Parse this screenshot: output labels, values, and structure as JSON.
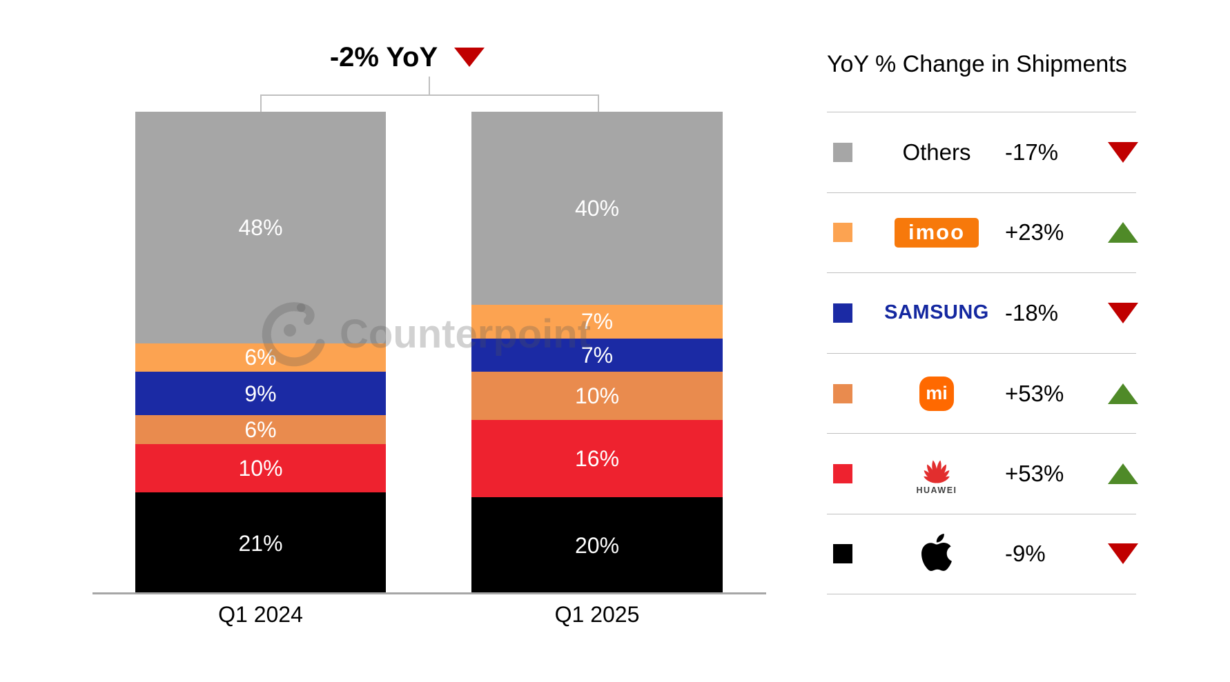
{
  "title": {
    "text": "-2% YoY",
    "direction": "down"
  },
  "watermark": {
    "text": "Counterpoint"
  },
  "colors": {
    "up": "#4F8A28",
    "down": "#C00000",
    "axis": "#A6A6A6",
    "divider": "#BFBFBF",
    "samsung_wordmark": "#1428A0",
    "imoo_logo_bg": "#F7790B",
    "mi_logo_bg": "#FF6900",
    "huawei_logo_red": "#E22E2E"
  },
  "chart_data": {
    "type": "bar",
    "subtype": "stacked-100-percent",
    "title": "-2% YoY",
    "unit": "%",
    "ylim": [
      0,
      100
    ],
    "grid": false,
    "legend_position": "right",
    "categories": [
      "Q1 2024",
      "Q1 2025"
    ],
    "series": [
      {
        "name": "Others",
        "color": "#A6A6A6",
        "values": [
          48,
          40
        ]
      },
      {
        "name": "imoo",
        "color": "#FCA351",
        "values": [
          6,
          7
        ]
      },
      {
        "name": "Samsung",
        "color": "#1B2AA4",
        "values": [
          9,
          7
        ]
      },
      {
        "name": "Xiaomi",
        "color": "#E98B4E",
        "values": [
          6,
          10
        ]
      },
      {
        "name": "Huawei",
        "color": "#EE222F",
        "values": [
          10,
          16
        ]
      },
      {
        "name": "Apple",
        "color": "#000000",
        "values": [
          21,
          20
        ]
      }
    ]
  },
  "legend": {
    "header": "YoY % Change in Shipments",
    "rows": [
      {
        "brand": "Others",
        "logo": "text",
        "swatch": "#A6A6A6",
        "change": "-17%",
        "direction": "down"
      },
      {
        "brand": "imoo",
        "logo": "imoo",
        "logo_text": "imoo",
        "swatch": "#FCA351",
        "change": "+23%",
        "direction": "up"
      },
      {
        "brand": "Samsung",
        "logo": "samsung",
        "logo_text": "SAMSUNG",
        "swatch": "#1B2AA4",
        "change": "-18%",
        "direction": "down"
      },
      {
        "brand": "Xiaomi",
        "logo": "mi",
        "logo_text": "mi",
        "swatch": "#E98B4E",
        "change": "+53%",
        "direction": "up"
      },
      {
        "brand": "Huawei",
        "logo": "huawei",
        "logo_text": "HUAWEI",
        "swatch": "#EE222F",
        "change": "+53%",
        "direction": "up"
      },
      {
        "brand": "Apple",
        "logo": "apple",
        "swatch": "#000000",
        "change": "-9%",
        "direction": "down"
      }
    ]
  }
}
